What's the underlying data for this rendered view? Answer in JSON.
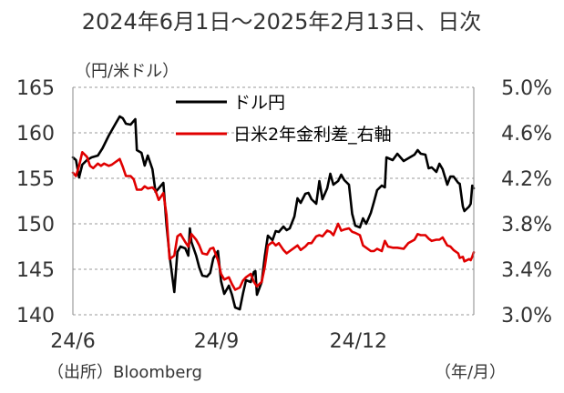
{
  "chart_data": {
    "type": "line",
    "title": "2024年6月1日～2025年2月13日、日次",
    "left_unit": "（円/米ドル）",
    "x_unit": "（年/月）",
    "source": "（出所）Bloomberg",
    "x_tick_labels": [
      "24/6",
      "24/9",
      "24/12"
    ],
    "x_tick_dates": [
      "2024-06-01",
      "2024-09-01",
      "2024-12-01"
    ],
    "x_range": [
      "2024-06-01",
      "2025-02-13"
    ],
    "y_left": {
      "lim": [
        140,
        165
      ],
      "ticks": [
        "140",
        "145",
        "150",
        "155",
        "160",
        "165"
      ]
    },
    "y_right": {
      "lim": [
        3.0,
        5.0
      ],
      "ticks": [
        "3.0%",
        "3.4%",
        "3.8%",
        "4.2%",
        "4.6%",
        "5.0%"
      ]
    },
    "grid": "horizontal-dashed",
    "legend_position": "top-center",
    "series": [
      {
        "name": "ドル円",
        "axis": "left",
        "color": "#000000",
        "points": [
          [
            "2024-06-01",
            157.3
          ],
          [
            "2024-06-03",
            157.0
          ],
          [
            "2024-06-05",
            155.1
          ],
          [
            "2024-06-07",
            156.5
          ],
          [
            "2024-06-10",
            157.0
          ],
          [
            "2024-06-13",
            157.3
          ],
          [
            "2024-06-17",
            157.5
          ],
          [
            "2024-06-20",
            158.3
          ],
          [
            "2024-06-24",
            159.7
          ],
          [
            "2024-06-26",
            160.3
          ],
          [
            "2024-06-28",
            160.9
          ],
          [
            "2024-07-01",
            161.8
          ],
          [
            "2024-07-03",
            161.6
          ],
          [
            "2024-07-05",
            161.0
          ],
          [
            "2024-07-08",
            160.9
          ],
          [
            "2024-07-11",
            161.5
          ],
          [
            "2024-07-12",
            158.1
          ],
          [
            "2024-07-15",
            157.8
          ],
          [
            "2024-07-17",
            156.4
          ],
          [
            "2024-07-19",
            157.5
          ],
          [
            "2024-07-22",
            156.0
          ],
          [
            "2024-07-24",
            153.5
          ],
          [
            "2024-07-26",
            153.9
          ],
          [
            "2024-07-29",
            154.5
          ],
          [
            "2024-07-31",
            149.9
          ],
          [
            "2024-08-02",
            146.5
          ],
          [
            "2024-08-05",
            142.5
          ],
          [
            "2024-08-07",
            146.9
          ],
          [
            "2024-08-09",
            147.5
          ],
          [
            "2024-08-12",
            147.3
          ],
          [
            "2024-08-14",
            146.5
          ],
          [
            "2024-08-15",
            149.5
          ],
          [
            "2024-08-16",
            148.0
          ],
          [
            "2024-08-19",
            146.5
          ],
          [
            "2024-08-21",
            145.2
          ],
          [
            "2024-08-23",
            144.3
          ],
          [
            "2024-08-26",
            144.2
          ],
          [
            "2024-08-28",
            144.6
          ],
          [
            "2024-08-30",
            146.2
          ],
          [
            "2024-09-02",
            147.0
          ],
          [
            "2024-09-04",
            143.7
          ],
          [
            "2024-09-06",
            142.3
          ],
          [
            "2024-09-09",
            143.2
          ],
          [
            "2024-09-11",
            142.2
          ],
          [
            "2024-09-13",
            140.8
          ],
          [
            "2024-09-16",
            140.6
          ],
          [
            "2024-09-18",
            142.3
          ],
          [
            "2024-09-20",
            143.8
          ],
          [
            "2024-09-23",
            143.6
          ],
          [
            "2024-09-25",
            144.7
          ],
          [
            "2024-09-26",
            144.8
          ],
          [
            "2024-09-27",
            142.2
          ],
          [
            "2024-09-30",
            143.6
          ],
          [
            "2024-10-02",
            146.4
          ],
          [
            "2024-10-04",
            148.7
          ],
          [
            "2024-10-07",
            148.2
          ],
          [
            "2024-10-09",
            149.2
          ],
          [
            "2024-10-11",
            149.1
          ],
          [
            "2024-10-14",
            149.7
          ],
          [
            "2024-10-16",
            149.3
          ],
          [
            "2024-10-18",
            149.5
          ],
          [
            "2024-10-21",
            150.8
          ],
          [
            "2024-10-23",
            152.8
          ],
          [
            "2024-10-25",
            152.3
          ],
          [
            "2024-10-28",
            153.3
          ],
          [
            "2024-10-30",
            153.4
          ],
          [
            "2024-11-01",
            152.7
          ],
          [
            "2024-11-04",
            152.2
          ],
          [
            "2024-11-06",
            154.7
          ],
          [
            "2024-11-08",
            152.7
          ],
          [
            "2024-11-11",
            153.9
          ],
          [
            "2024-11-13",
            155.5
          ],
          [
            "2024-11-15",
            154.3
          ],
          [
            "2024-11-18",
            154.7
          ],
          [
            "2024-11-20",
            155.4
          ],
          [
            "2024-11-22",
            154.8
          ],
          [
            "2024-11-25",
            154.3
          ],
          [
            "2024-11-27",
            151.1
          ],
          [
            "2024-11-29",
            149.8
          ],
          [
            "2024-12-02",
            149.6
          ],
          [
            "2024-12-04",
            150.6
          ],
          [
            "2024-12-06",
            150.0
          ],
          [
            "2024-12-09",
            151.2
          ],
          [
            "2024-12-11",
            152.4
          ],
          [
            "2024-12-13",
            153.7
          ],
          [
            "2024-12-16",
            154.2
          ],
          [
            "2024-12-18",
            154.0
          ],
          [
            "2024-12-19",
            157.3
          ],
          [
            "2024-12-23",
            157.0
          ],
          [
            "2024-12-26",
            157.7
          ],
          [
            "2024-12-30",
            156.9
          ],
          [
            "2025-01-02",
            157.2
          ],
          [
            "2025-01-06",
            157.6
          ],
          [
            "2025-01-08",
            158.1
          ],
          [
            "2025-01-10",
            157.7
          ],
          [
            "2025-01-13",
            157.6
          ],
          [
            "2025-01-15",
            156.1
          ],
          [
            "2025-01-17",
            156.2
          ],
          [
            "2025-01-20",
            155.7
          ],
          [
            "2025-01-22",
            156.6
          ],
          [
            "2025-01-24",
            156.0
          ],
          [
            "2025-01-27",
            154.3
          ],
          [
            "2025-01-29",
            155.2
          ],
          [
            "2025-01-31",
            155.2
          ],
          [
            "2025-02-03",
            154.5
          ],
          [
            "2025-02-04",
            154.4
          ],
          [
            "2025-02-06",
            151.9
          ],
          [
            "2025-02-07",
            151.4
          ],
          [
            "2025-02-10",
            151.9
          ],
          [
            "2025-02-11",
            152.2
          ],
          [
            "2025-02-12",
            154.2
          ],
          [
            "2025-02-13",
            153.9
          ]
        ]
      },
      {
        "name": "日米2年金利差_右軸",
        "axis": "right",
        "color": "#e00000",
        "points": [
          [
            "2024-06-01",
            4.25
          ],
          [
            "2024-06-03",
            4.22
          ],
          [
            "2024-06-05",
            4.31
          ],
          [
            "2024-06-07",
            4.43
          ],
          [
            "2024-06-10",
            4.39
          ],
          [
            "2024-06-12",
            4.31
          ],
          [
            "2024-06-14",
            4.29
          ],
          [
            "2024-06-17",
            4.33
          ],
          [
            "2024-06-19",
            4.31
          ],
          [
            "2024-06-21",
            4.33
          ],
          [
            "2024-06-24",
            4.31
          ],
          [
            "2024-06-26",
            4.32
          ],
          [
            "2024-06-28",
            4.34
          ],
          [
            "2024-07-01",
            4.37
          ],
          [
            "2024-07-03",
            4.3
          ],
          [
            "2024-07-05",
            4.22
          ],
          [
            "2024-07-08",
            4.22
          ],
          [
            "2024-07-10",
            4.19
          ],
          [
            "2024-07-12",
            4.1
          ],
          [
            "2024-07-15",
            4.1
          ],
          [
            "2024-07-17",
            4.13
          ],
          [
            "2024-07-19",
            4.11
          ],
          [
            "2024-07-22",
            4.12
          ],
          [
            "2024-07-24",
            4.09
          ],
          [
            "2024-07-26",
            4.01
          ],
          [
            "2024-07-29",
            4.07
          ],
          [
            "2024-07-31",
            3.88
          ],
          [
            "2024-08-02",
            3.49
          ],
          [
            "2024-08-05",
            3.52
          ],
          [
            "2024-08-07",
            3.69
          ],
          [
            "2024-08-09",
            3.71
          ],
          [
            "2024-08-12",
            3.64
          ],
          [
            "2024-08-14",
            3.6
          ],
          [
            "2024-08-16",
            3.71
          ],
          [
            "2024-08-19",
            3.66
          ],
          [
            "2024-08-21",
            3.61
          ],
          [
            "2024-08-23",
            3.54
          ],
          [
            "2024-08-26",
            3.53
          ],
          [
            "2024-08-28",
            3.58
          ],
          [
            "2024-08-30",
            3.59
          ],
          [
            "2024-09-02",
            3.48
          ],
          [
            "2024-09-04",
            3.36
          ],
          [
            "2024-09-06",
            3.31
          ],
          [
            "2024-09-09",
            3.33
          ],
          [
            "2024-09-11",
            3.27
          ],
          [
            "2024-09-13",
            3.22
          ],
          [
            "2024-09-16",
            3.24
          ],
          [
            "2024-09-18",
            3.3
          ],
          [
            "2024-09-20",
            3.33
          ],
          [
            "2024-09-23",
            3.36
          ],
          [
            "2024-09-25",
            3.29
          ],
          [
            "2024-09-27",
            3.25
          ],
          [
            "2024-09-30",
            3.29
          ],
          [
            "2024-10-02",
            3.42
          ],
          [
            "2024-10-04",
            3.61
          ],
          [
            "2024-10-07",
            3.64
          ],
          [
            "2024-10-09",
            3.61
          ],
          [
            "2024-10-11",
            3.63
          ],
          [
            "2024-10-14",
            3.57
          ],
          [
            "2024-10-16",
            3.54
          ],
          [
            "2024-10-18",
            3.56
          ],
          [
            "2024-10-21",
            3.59
          ],
          [
            "2024-10-23",
            3.61
          ],
          [
            "2024-10-25",
            3.57
          ],
          [
            "2024-10-28",
            3.6
          ],
          [
            "2024-10-30",
            3.63
          ],
          [
            "2024-11-01",
            3.63
          ],
          [
            "2024-11-04",
            3.69
          ],
          [
            "2024-11-06",
            3.7
          ],
          [
            "2024-11-08",
            3.69
          ],
          [
            "2024-11-11",
            3.74
          ],
          [
            "2024-11-13",
            3.73
          ],
          [
            "2024-11-15",
            3.7
          ],
          [
            "2024-11-18",
            3.8
          ],
          [
            "2024-11-20",
            3.74
          ],
          [
            "2024-11-22",
            3.75
          ],
          [
            "2024-11-25",
            3.76
          ],
          [
            "2024-11-27",
            3.73
          ],
          [
            "2024-11-29",
            3.72
          ],
          [
            "2024-12-02",
            3.7
          ],
          [
            "2024-12-04",
            3.61
          ],
          [
            "2024-12-06",
            3.59
          ],
          [
            "2024-12-09",
            3.56
          ],
          [
            "2024-12-11",
            3.56
          ],
          [
            "2024-12-13",
            3.58
          ],
          [
            "2024-12-16",
            3.56
          ],
          [
            "2024-12-18",
            3.65
          ],
          [
            "2024-12-20",
            3.6
          ],
          [
            "2024-12-23",
            3.59
          ],
          [
            "2024-12-26",
            3.59
          ],
          [
            "2024-12-30",
            3.58
          ],
          [
            "2025-01-02",
            3.63
          ],
          [
            "2025-01-06",
            3.66
          ],
          [
            "2025-01-08",
            3.71
          ],
          [
            "2025-01-10",
            3.7
          ],
          [
            "2025-01-13",
            3.7
          ],
          [
            "2025-01-15",
            3.67
          ],
          [
            "2025-01-17",
            3.65
          ],
          [
            "2025-01-20",
            3.66
          ],
          [
            "2025-01-22",
            3.66
          ],
          [
            "2025-01-24",
            3.68
          ],
          [
            "2025-01-27",
            3.61
          ],
          [
            "2025-01-29",
            3.6
          ],
          [
            "2025-01-31",
            3.57
          ],
          [
            "2025-02-03",
            3.54
          ],
          [
            "2025-02-04",
            3.5
          ],
          [
            "2025-02-06",
            3.51
          ],
          [
            "2025-02-07",
            3.47
          ],
          [
            "2025-02-10",
            3.49
          ],
          [
            "2025-02-11",
            3.48
          ],
          [
            "2025-02-12",
            3.51
          ],
          [
            "2025-02-13",
            3.55
          ]
        ]
      }
    ]
  }
}
